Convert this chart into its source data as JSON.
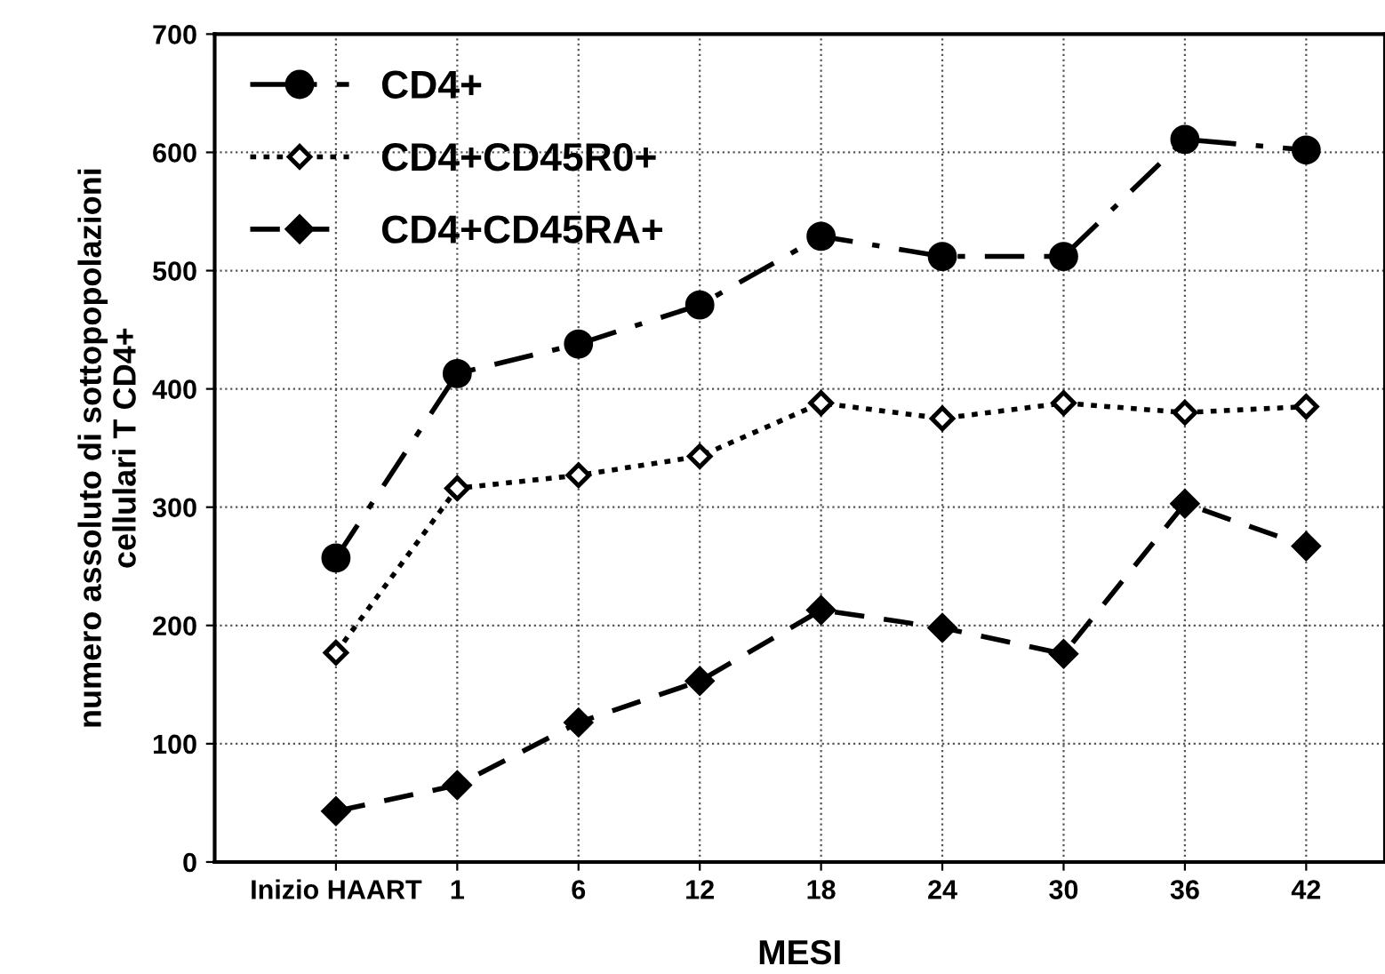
{
  "chart_data": {
    "type": "line",
    "xlabel": "MESI",
    "ylabel": "numero assoluto di sottopopolazioni\ncellulari T CD4+",
    "categories": [
      "Inizio HAART",
      "1",
      "6",
      "12",
      "18",
      "24",
      "30",
      "36",
      "42"
    ],
    "series": [
      {
        "name": "CD4+",
        "color": "#000000",
        "marker": "circle",
        "line_style": "dashdot",
        "values": [
          257,
          413,
          438,
          471,
          529,
          512,
          512,
          611,
          602
        ]
      },
      {
        "name": "CD4+CD45R0+",
        "color": "#000000",
        "marker": "diamond_open",
        "line_style": "dotted",
        "values": [
          177,
          316,
          327,
          343,
          388,
          375,
          388,
          380,
          385
        ]
      },
      {
        "name": "CD4+CD45RA+",
        "color": "#000000",
        "marker": "diamond",
        "line_style": "dashed",
        "values": [
          43,
          65,
          118,
          153,
          213,
          198,
          176,
          303,
          267
        ]
      }
    ],
    "ylim": [
      0,
      700
    ],
    "yticks": [
      0,
      100,
      200,
      300,
      400,
      500,
      600,
      700
    ],
    "grid": true,
    "legend": "top left"
  }
}
